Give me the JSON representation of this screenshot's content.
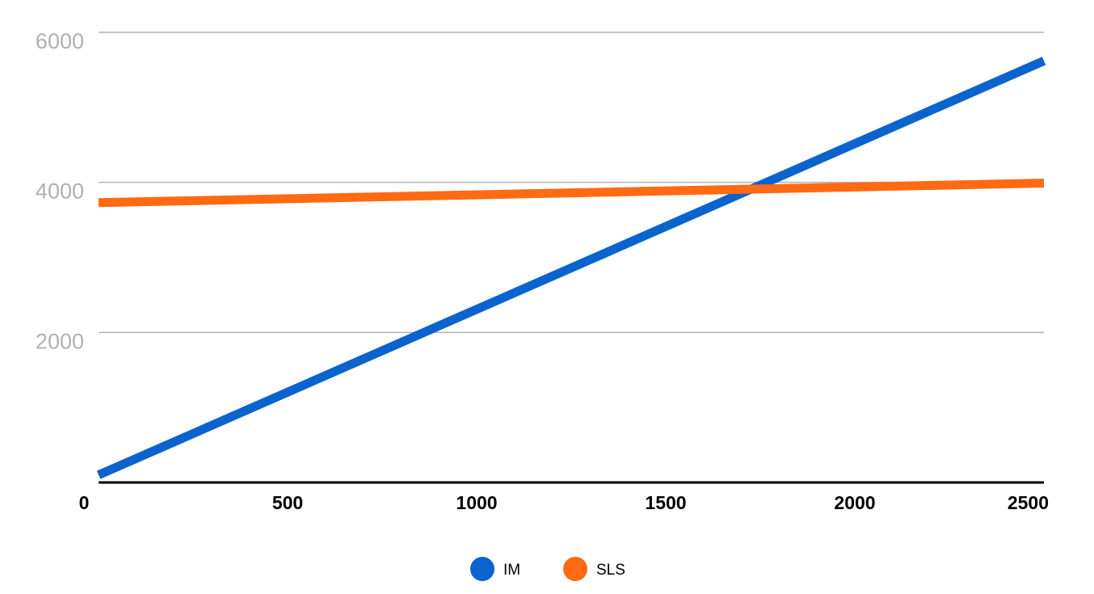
{
  "chart_data": {
    "type": "line",
    "title": "",
    "xlabel": "",
    "ylabel": "",
    "xlim": [
      0,
      2500
    ],
    "ylim": [
      0,
      6000
    ],
    "x_ticks": [
      "0",
      "500",
      "1000",
      "1500",
      "2000",
      "2500"
    ],
    "y_ticks": [
      "2000",
      "4000",
      "6000"
    ],
    "grid": "horizontal",
    "legend_position": "bottom-center",
    "series": [
      {
        "name": "IM",
        "color": "#0b63ce",
        "x": [
          0,
          2500
        ],
        "y": [
          100,
          5620
        ]
      },
      {
        "name": "SLS",
        "color": "#ff6a13",
        "x": [
          0,
          2500
        ],
        "y": [
          3730,
          3990
        ]
      }
    ]
  }
}
